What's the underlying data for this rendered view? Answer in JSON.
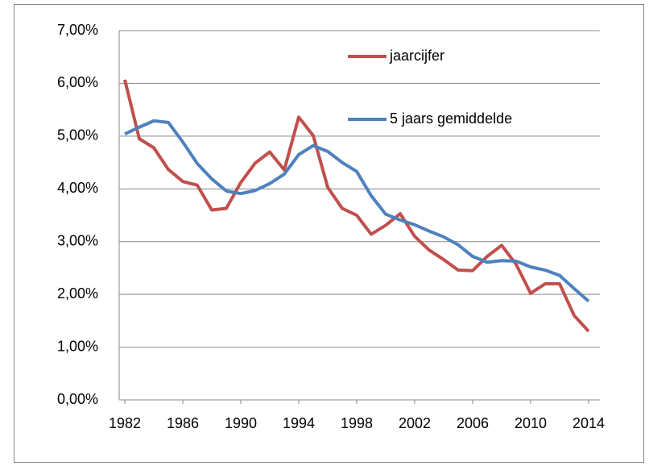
{
  "chart_data": {
    "type": "line",
    "x": [
      1982,
      1983,
      1984,
      1985,
      1986,
      1987,
      1988,
      1989,
      1990,
      1991,
      1992,
      1993,
      1994,
      1995,
      1996,
      1997,
      1998,
      1999,
      2000,
      2001,
      2002,
      2003,
      2004,
      2005,
      2006,
      2007,
      2008,
      2009,
      2010,
      2011,
      2012,
      2013,
      2014
    ],
    "series": [
      {
        "name": "jaarcijfer",
        "color": "#c0504d",
        "values": [
          6.07,
          4.95,
          4.78,
          4.37,
          4.14,
          4.07,
          3.6,
          3.63,
          4.12,
          4.49,
          4.7,
          4.36,
          5.36,
          5.01,
          4.03,
          3.63,
          3.5,
          3.14,
          3.31,
          3.53,
          3.1,
          2.84,
          2.66,
          2.46,
          2.45,
          2.72,
          2.93,
          2.57,
          2.02,
          2.2,
          2.2,
          1.6,
          1.3
        ]
      },
      {
        "name": "5 jaars gemiddelde",
        "color": "#4f81bd",
        "values": [
          5.04,
          5.17,
          5.29,
          5.26,
          4.89,
          4.48,
          4.19,
          3.96,
          3.91,
          3.97,
          4.1,
          4.28,
          4.65,
          4.82,
          4.71,
          4.5,
          4.33,
          3.87,
          3.52,
          3.41,
          3.32,
          3.2,
          3.09,
          2.94,
          2.72,
          2.61,
          2.64,
          2.63,
          2.52,
          2.46,
          2.36,
          2.11,
          1.87
        ]
      }
    ],
    "xlim": [
      1982,
      2014
    ],
    "xticks": [
      1982,
      1986,
      1990,
      1994,
      1998,
      2002,
      2006,
      2010,
      2014
    ],
    "ylim": [
      0,
      7
    ],
    "yticks": [
      {
        "value": 0,
        "label": "0,00%"
      },
      {
        "value": 1,
        "label": "1,00%"
      },
      {
        "value": 2,
        "label": "2,00%"
      },
      {
        "value": 3,
        "label": "3,00%"
      },
      {
        "value": 4,
        "label": "4,00%"
      },
      {
        "value": 5,
        "label": "5,00%"
      },
      {
        "value": 6,
        "label": "6,00%"
      },
      {
        "value": 7,
        "label": "7,00%"
      }
    ],
    "grid": true,
    "legend": "top-right"
  }
}
